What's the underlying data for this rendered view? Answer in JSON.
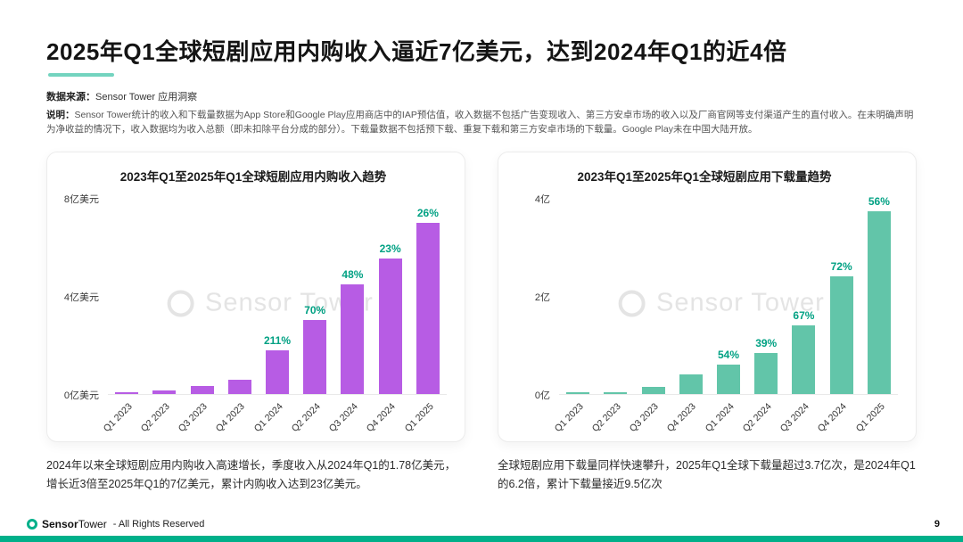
{
  "header": {
    "title": "2025年Q1全球短剧应用内购收入逼近7亿美元，达到2024年Q1的近4倍",
    "source_label": "数据来源：",
    "source_value": "Sensor Tower 应用洞察",
    "note_label": "说明：",
    "note_text": "Sensor Tower统计的收入和下载量数据为App Store和Google Play应用商店中的IAP预估值，收入数据不包括广告变现收入、第三方安卓市场的收入以及厂商官网等支付渠道产生的直付收入。在未明确声明为净收益的情况下，收入数据均为收入总额（即未扣除平台分成的部分）。下载量数据不包括预下载、重复下载和第三方安卓市场的下载量。Google Play未在中国大陆开放。"
  },
  "colors": {
    "accent_teal": "#00b08a",
    "revenue_bar": "#b75ce4",
    "download_bar": "#62c5a9",
    "growth_label": "#00a183"
  },
  "watermark": {
    "text": "Sensor Tower"
  },
  "chart_data": [
    {
      "type": "bar",
      "title": "2023年Q1至2025年Q1全球短剧应用内购收入趋势",
      "categories": [
        "Q1 2023",
        "Q2 2023",
        "Q3 2023",
        "Q4 2023",
        "Q1 2024",
        "Q2 2024",
        "Q3 2024",
        "Q4 2024",
        "Q1 2025"
      ],
      "values": [
        0.06,
        0.12,
        0.3,
        0.57,
        1.78,
        3.0,
        4.45,
        5.5,
        6.95
      ],
      "growth_labels": [
        "",
        "",
        "",
        "",
        "211%",
        "70%",
        "48%",
        "23%",
        "26%"
      ],
      "y_ticks": [
        "8亿美元",
        "4亿美元",
        "0亿美元"
      ],
      "ylim": [
        0,
        8
      ],
      "ylabel": "亿美元",
      "legend": "none",
      "grid": "off",
      "bar_color": "#b75ce4",
      "label_color": "#00a183",
      "caption": "2024年以来全球短剧应用内购收入高速增长，季度收入从2024年Q1的1.78亿美元，增长近3倍至2025年Q1的7亿美元，累计内购收入达到23亿美元。"
    },
    {
      "type": "bar",
      "title": "2023年Q1至2025年Q1全球短剧应用下载量趋势",
      "categories": [
        "Q1 2023",
        "Q2 2023",
        "Q3 2023",
        "Q4 2023",
        "Q1 2024",
        "Q2 2024",
        "Q3 2024",
        "Q4 2024",
        "Q1 2025"
      ],
      "values": [
        0.015,
        0.03,
        0.14,
        0.39,
        0.6,
        0.83,
        1.39,
        2.39,
        3.72
      ],
      "growth_labels": [
        "",
        "",
        "",
        "",
        "54%",
        "39%",
        "67%",
        "72%",
        "56%"
      ],
      "y_ticks": [
        "4亿",
        "2亿",
        "0亿"
      ],
      "ylim": [
        0,
        4
      ],
      "ylabel": "亿",
      "legend": "none",
      "grid": "off",
      "bar_color": "#62c5a9",
      "label_color": "#00a183",
      "caption": "全球短剧应用下载量同样快速攀升，2025年Q1全球下载量超过3.7亿次，是2024年Q1的6.2倍，累计下载量接近9.5亿次"
    }
  ],
  "footer": {
    "brand_bold": "Sensor",
    "brand_regular": "Tower",
    "rights": "- All Rights Reserved",
    "page": "9"
  }
}
